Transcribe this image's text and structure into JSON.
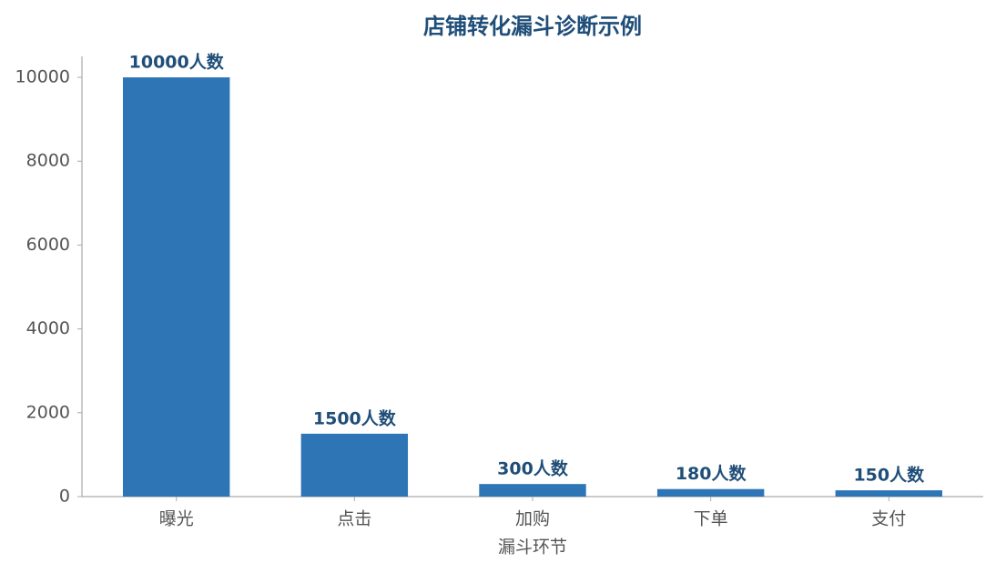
{
  "chart_data": {
    "type": "bar",
    "title": "店铺转化漏斗诊断示例",
    "x_label": "漏斗环节",
    "categories": [
      "曝光",
      "点击",
      "加购",
      "下单",
      "支付"
    ],
    "values": [
      10000,
      1500,
      300,
      180,
      150
    ],
    "value_labels": [
      "10000人数",
      "1500人数",
      "300人数",
      "180人数",
      "150人数"
    ],
    "color": "#2e75b6",
    "ylim": [
      0,
      10500
    ],
    "yticks": [
      0,
      2000,
      4000,
      6000,
      8000,
      10000
    ],
    "grid": false
  }
}
